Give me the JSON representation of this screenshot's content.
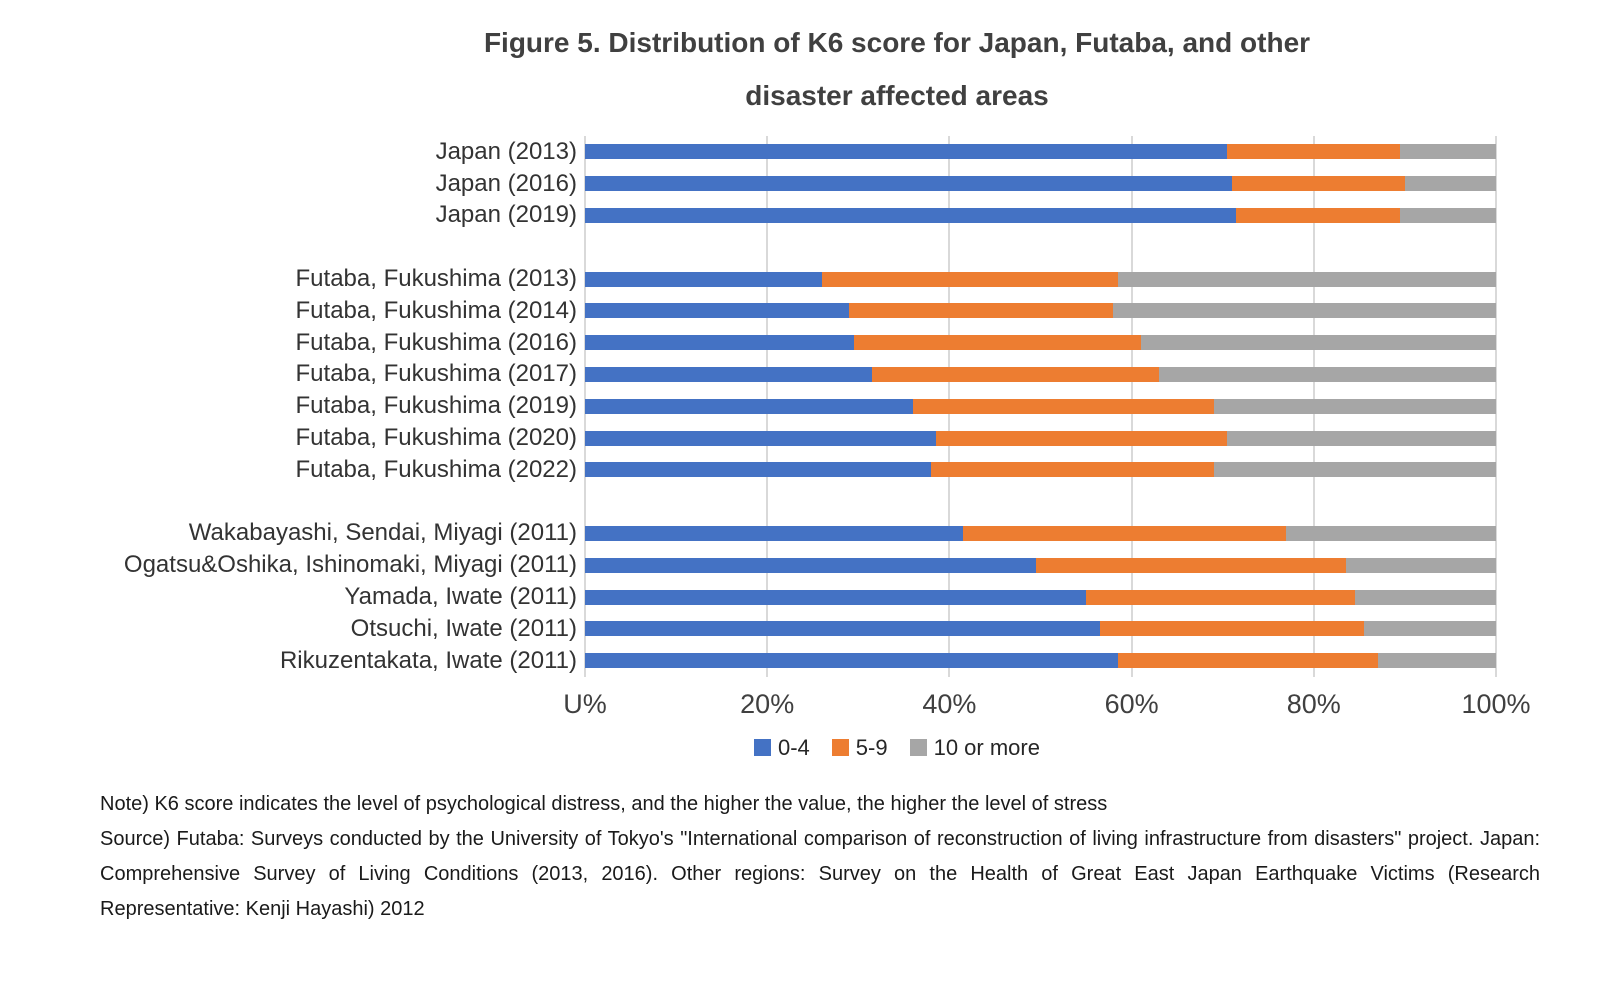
{
  "title": {
    "line1": "Figure 5. Distribution of K6 score for Japan, Futaba, and other",
    "line2": "disaster affected areas"
  },
  "chart_data": {
    "type": "bar",
    "orientation": "horizontal",
    "stacked": true,
    "title": "Figure 5. Distribution of K6 score for Japan, Futaba, and other disaster affected areas",
    "xlabel": "",
    "ylabel": "",
    "xlim": [
      0,
      100
    ],
    "x_ticks": [
      "U%",
      "20%",
      "40%",
      "60%",
      "80%",
      "100%"
    ],
    "gridlines": "vertical",
    "legend_position": "bottom",
    "categories": [
      "Japan (2013)",
      "Japan (2016)",
      "Japan (2019)",
      "Futaba, Fukushima (2013)",
      "Futaba, Fukushima (2014)",
      "Futaba, Fukushima (2016)",
      "Futaba, Fukushima (2017)",
      "Futaba, Fukushima (2019)",
      "Futaba, Fukushima (2020)",
      "Futaba, Fukushima (2022)",
      "Wakabayashi, Sendai, Miyagi (2011)",
      "Ogatsu&Oshika, Ishinomaki, Miyagi (2011)",
      "Yamada, Iwate (2011)",
      "Otsuchi, Iwate (2011)",
      "Rikuzentakata, Iwate (2011)"
    ],
    "group_gap_after": [
      2,
      9
    ],
    "series": [
      {
        "name": "0-4",
        "color": "#4472C4",
        "values": [
          70.5,
          71,
          71.5,
          26,
          29,
          29.5,
          31.5,
          36,
          38.5,
          38,
          41.5,
          49.5,
          55,
          56.5,
          58.5
        ]
      },
      {
        "name": "5-9",
        "color": "#ED7D31",
        "values": [
          19,
          19,
          18,
          32.5,
          29,
          31.5,
          31.5,
          33,
          32,
          31,
          35.5,
          34,
          29.5,
          29,
          28.5
        ]
      },
      {
        "name": "10 or more",
        "color": "#A6A6A6",
        "values": [
          10.5,
          10,
          10.5,
          41.5,
          42,
          39,
          37,
          31,
          29.5,
          31,
          23,
          16.5,
          15.5,
          14.5,
          13
        ]
      }
    ]
  },
  "notes": {
    "note": "Note) K6 score indicates the level of psychological distress, and the higher the value, the higher the level of stress",
    "source": "Source) Futaba: Surveys conducted by the University of Tokyo's \"International comparison of reconstruction of living infrastructure from disasters\" project. Japan: Comprehensive Survey of Living Conditions (2013, 2016). Other regions: Survey on the Health of Great East Japan Earthquake Victims (Research Representative: Kenji Hayashi) 2012"
  }
}
